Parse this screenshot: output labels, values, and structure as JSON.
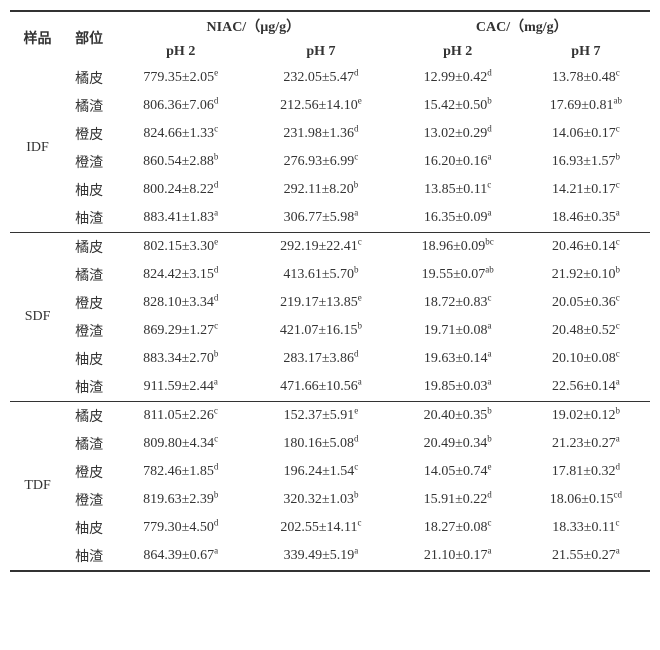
{
  "headers": {
    "sample": "样品",
    "part": "部位",
    "niac": "NIAC/（µg/g）",
    "cac": "CAC/（mg/g）",
    "ph2": "pH 2",
    "ph7": "pH 7"
  },
  "colors": {
    "text": "#333333",
    "rule": "#333333",
    "background": "#ffffff"
  },
  "fonts": {
    "base_size_pt": 10,
    "sup_size_pt": 7,
    "family": "Times New Roman / SimSun"
  },
  "groups": [
    {
      "name": "IDF",
      "rows": [
        {
          "part": "橘皮",
          "niac_ph2": {
            "v": "779.35±2.05",
            "s": "e"
          },
          "niac_ph7": {
            "v": "232.05±5.47",
            "s": "d"
          },
          "cac_ph2": {
            "v": "12.99±0.42",
            "s": "d"
          },
          "cac_ph7": {
            "v": "13.78±0.48",
            "s": "c"
          }
        },
        {
          "part": "橘渣",
          "niac_ph2": {
            "v": "806.36±7.06",
            "s": "d"
          },
          "niac_ph7": {
            "v": "212.56±14.10",
            "s": "e"
          },
          "cac_ph2": {
            "v": "15.42±0.50",
            "s": "b"
          },
          "cac_ph7": {
            "v": "17.69±0.81",
            "s": "ab"
          }
        },
        {
          "part": "橙皮",
          "niac_ph2": {
            "v": "824.66±1.33",
            "s": "c"
          },
          "niac_ph7": {
            "v": "231.98±1.36",
            "s": "d"
          },
          "cac_ph2": {
            "v": "13.02±0.29",
            "s": "d"
          },
          "cac_ph7": {
            "v": "14.06±0.17",
            "s": "c"
          }
        },
        {
          "part": "橙渣",
          "niac_ph2": {
            "v": "860.54±2.88",
            "s": "b"
          },
          "niac_ph7": {
            "v": "276.93±6.99",
            "s": "c"
          },
          "cac_ph2": {
            "v": "16.20±0.16",
            "s": "a"
          },
          "cac_ph7": {
            "v": "16.93±1.57",
            "s": "b"
          }
        },
        {
          "part": "柚皮",
          "niac_ph2": {
            "v": "800.24±8.22",
            "s": "d"
          },
          "niac_ph7": {
            "v": "292.11±8.20",
            "s": "b"
          },
          "cac_ph2": {
            "v": "13.85±0.11",
            "s": "c"
          },
          "cac_ph7": {
            "v": "14.21±0.17",
            "s": "c"
          }
        },
        {
          "part": "柚渣",
          "niac_ph2": {
            "v": "883.41±1.83",
            "s": "a"
          },
          "niac_ph7": {
            "v": "306.77±5.98",
            "s": "a"
          },
          "cac_ph2": {
            "v": "16.35±0.09",
            "s": "a"
          },
          "cac_ph7": {
            "v": "18.46±0.35",
            "s": "a"
          }
        }
      ]
    },
    {
      "name": "SDF",
      "rows": [
        {
          "part": "橘皮",
          "niac_ph2": {
            "v": "802.15±3.30",
            "s": "e"
          },
          "niac_ph7": {
            "v": "292.19±22.41",
            "s": "c"
          },
          "cac_ph2": {
            "v": "18.96±0.09",
            "s": "bc"
          },
          "cac_ph7": {
            "v": "20.46±0.14",
            "s": "c"
          }
        },
        {
          "part": "橘渣",
          "niac_ph2": {
            "v": "824.42±3.15",
            "s": "d"
          },
          "niac_ph7": {
            "v": "413.61±5.70",
            "s": "b"
          },
          "cac_ph2": {
            "v": "19.55±0.07",
            "s": "ab"
          },
          "cac_ph7": {
            "v": "21.92±0.10",
            "s": "b"
          }
        },
        {
          "part": "橙皮",
          "niac_ph2": {
            "v": "828.10±3.34",
            "s": "d"
          },
          "niac_ph7": {
            "v": "219.17±13.85",
            "s": "e"
          },
          "cac_ph2": {
            "v": "18.72±0.83",
            "s": "c"
          },
          "cac_ph7": {
            "v": "20.05±0.36",
            "s": "c"
          }
        },
        {
          "part": "橙渣",
          "niac_ph2": {
            "v": "869.29±1.27",
            "s": "c"
          },
          "niac_ph7": {
            "v": "421.07±16.15",
            "s": "b"
          },
          "cac_ph2": {
            "v": "19.71±0.08",
            "s": "a"
          },
          "cac_ph7": {
            "v": "20.48±0.52",
            "s": "c"
          }
        },
        {
          "part": "柚皮",
          "niac_ph2": {
            "v": "883.34±2.70",
            "s": "b"
          },
          "niac_ph7": {
            "v": "283.17±3.86",
            "s": "d"
          },
          "cac_ph2": {
            "v": "19.63±0.14",
            "s": "a"
          },
          "cac_ph7": {
            "v": "20.10±0.08",
            "s": "c"
          }
        },
        {
          "part": "柚渣",
          "niac_ph2": {
            "v": "911.59±2.44",
            "s": "a"
          },
          "niac_ph7": {
            "v": "471.66±10.56",
            "s": "a"
          },
          "cac_ph2": {
            "v": "19.85±0.03",
            "s": "a"
          },
          "cac_ph7": {
            "v": "22.56±0.14",
            "s": "a"
          }
        }
      ]
    },
    {
      "name": "TDF",
      "rows": [
        {
          "part": "橘皮",
          "niac_ph2": {
            "v": "811.05±2.26",
            "s": "c"
          },
          "niac_ph7": {
            "v": "152.37±5.91",
            "s": "e"
          },
          "cac_ph2": {
            "v": "20.40±0.35",
            "s": "b"
          },
          "cac_ph7": {
            "v": "19.02±0.12",
            "s": "b"
          }
        },
        {
          "part": "橘渣",
          "niac_ph2": {
            "v": "809.80±4.34",
            "s": "c"
          },
          "niac_ph7": {
            "v": "180.16±5.08",
            "s": "d"
          },
          "cac_ph2": {
            "v": "20.49±0.34",
            "s": "b"
          },
          "cac_ph7": {
            "v": "21.23±0.27",
            "s": "a"
          }
        },
        {
          "part": "橙皮",
          "niac_ph2": {
            "v": "782.46±1.85",
            "s": "d"
          },
          "niac_ph7": {
            "v": "196.24±1.54",
            "s": "c"
          },
          "cac_ph2": {
            "v": "14.05±0.74",
            "s": "e"
          },
          "cac_ph7": {
            "v": "17.81±0.32",
            "s": "d"
          }
        },
        {
          "part": "橙渣",
          "niac_ph2": {
            "v": "819.63±2.39",
            "s": "b"
          },
          "niac_ph7": {
            "v": "320.32±1.03",
            "s": "b"
          },
          "cac_ph2": {
            "v": "15.91±0.22",
            "s": "d"
          },
          "cac_ph7": {
            "v": "18.06±0.15",
            "s": "cd"
          }
        },
        {
          "part": "柚皮",
          "niac_ph2": {
            "v": "779.30±4.50",
            "s": "d"
          },
          "niac_ph7": {
            "v": "202.55±14.11",
            "s": "c"
          },
          "cac_ph2": {
            "v": "18.27±0.08",
            "s": "c"
          },
          "cac_ph7": {
            "v": "18.33±0.11",
            "s": "c"
          }
        },
        {
          "part": "柚渣",
          "niac_ph2": {
            "v": "864.39±0.67",
            "s": "a"
          },
          "niac_ph7": {
            "v": "339.49±5.19",
            "s": "a"
          },
          "cac_ph2": {
            "v": "21.10±0.17",
            "s": "a"
          },
          "cac_ph7": {
            "v": "21.55±0.27",
            "s": "a"
          }
        }
      ]
    }
  ]
}
